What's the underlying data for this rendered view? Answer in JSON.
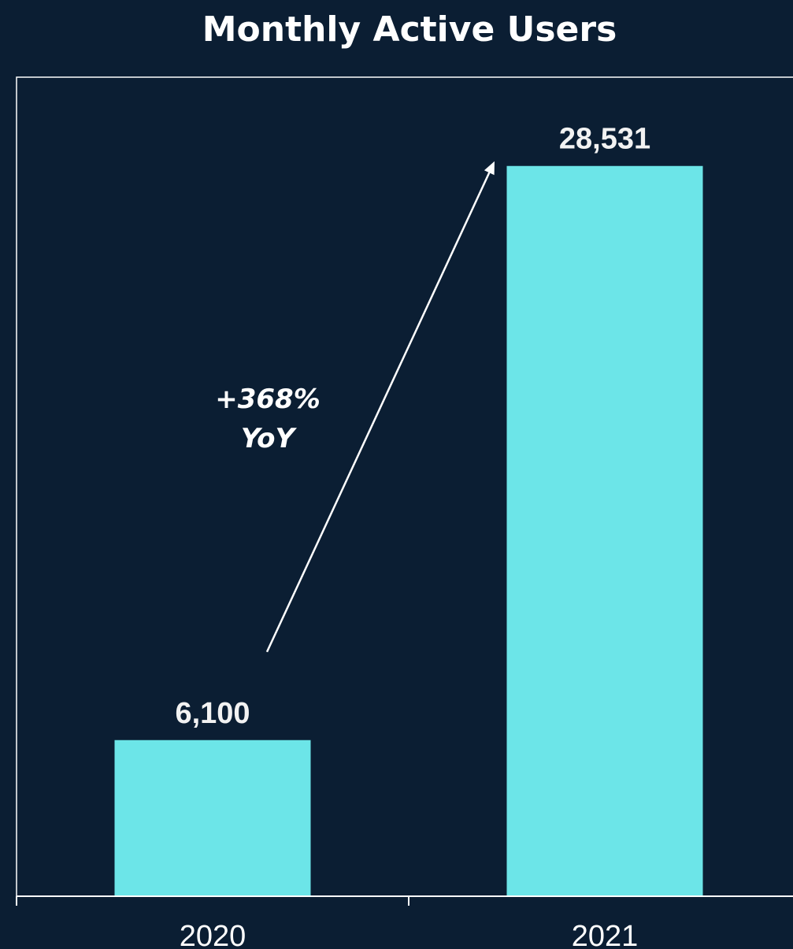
{
  "chart_data": {
    "type": "bar",
    "title": "Monthly Active Users",
    "categories": [
      "2020",
      "2021"
    ],
    "values": [
      6100,
      28531
    ],
    "value_labels": [
      "6,100",
      "28,531"
    ],
    "xlabel": "",
    "ylabel": "",
    "ylim": [
      0,
      32000
    ],
    "grid": false,
    "legend": "none",
    "annotation": {
      "lines": [
        "+368%",
        "YoY"
      ],
      "from_category": "2020",
      "to_category": "2021"
    }
  },
  "colors": {
    "background": "#0b1e33",
    "bar": "#6ce5e8",
    "axis": "#ffffff",
    "text": "#ffffff"
  }
}
